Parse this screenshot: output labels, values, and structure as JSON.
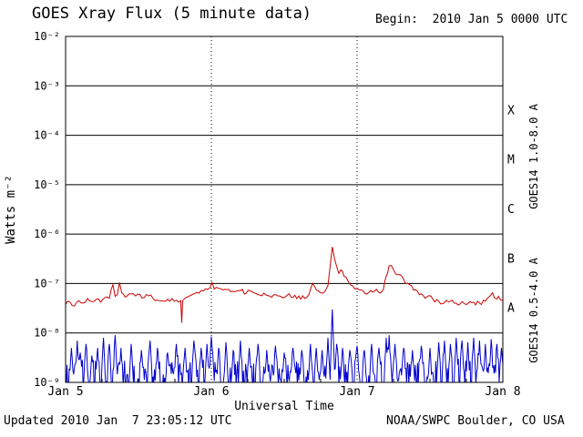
{
  "header": {
    "title": "GOES Xray Flux (5 minute data)",
    "begin_label": "Begin:  2010 Jan 5 0000 UTC"
  },
  "footer": {
    "updated": "Updated 2010 Jan  7 23:05:12 UTC",
    "source": "NOAA/SWPC Boulder, CO USA"
  },
  "chart_data": {
    "type": "line",
    "title": "GOES Xray Flux (5 minute data)",
    "xlabel": "Universal Time",
    "ylabel": "Watts m⁻²",
    "x_axis": {
      "range_days": [
        0,
        3
      ],
      "ticks": [
        {
          "label": "Jan 5",
          "t": 0
        },
        {
          "label": "Jan 6",
          "t": 1
        },
        {
          "label": "Jan 7",
          "t": 2
        },
        {
          "label": "Jan 8",
          "t": 3
        }
      ],
      "minor_tick_hours": 6
    },
    "y_axis": {
      "log_range": [
        -9,
        -2
      ],
      "ticks": [
        {
          "label": "10⁻²",
          "log": -2
        },
        {
          "label": "10⁻³",
          "log": -3
        },
        {
          "label": "10⁻⁴",
          "log": -4
        },
        {
          "label": "10⁻⁵",
          "log": -5
        },
        {
          "label": "10⁻⁶",
          "log": -6
        },
        {
          "label": "10⁻⁷",
          "log": -7
        },
        {
          "label": "10⁻⁸",
          "log": -8
        },
        {
          "label": "10⁻⁹",
          "log": -9
        }
      ]
    },
    "flare_classes": [
      {
        "label": "X",
        "log_center": -3.5
      },
      {
        "label": "M",
        "log_center": -4.5
      },
      {
        "label": "C",
        "log_center": -5.5
      },
      {
        "label": "B",
        "log_center": -6.5
      },
      {
        "label": "A",
        "log_center": -7.5
      }
    ],
    "grid": {
      "horizontal_solid_logs": [
        -3,
        -4,
        -5,
        -6,
        -7,
        -8
      ],
      "vertical_dotted_days": [
        1,
        2
      ]
    },
    "series": [
      {
        "name": "GOES14 1.0-8.0 A",
        "color": "#cc0000",
        "render_jitter_log": 0.05,
        "x": [
          0.0,
          0.03,
          0.06,
          0.09,
          0.12,
          0.15,
          0.18,
          0.21,
          0.24,
          0.27,
          0.3,
          0.325,
          0.34,
          0.355,
          0.37,
          0.385,
          0.42,
          0.45,
          0.48,
          0.51,
          0.54,
          0.57,
          0.6,
          0.63,
          0.66,
          0.7,
          0.73,
          0.76,
          0.79,
          0.797,
          0.803,
          0.81,
          0.84,
          0.87,
          0.9,
          0.93,
          0.96,
          0.99,
          1.005,
          1.02,
          1.05,
          1.08,
          1.12,
          1.16,
          1.2,
          1.24,
          1.28,
          1.32,
          1.36,
          1.4,
          1.44,
          1.48,
          1.52,
          1.56,
          1.6,
          1.64,
          1.67,
          1.695,
          1.72,
          1.75,
          1.78,
          1.8,
          1.815,
          1.83,
          1.845,
          1.86,
          1.875,
          1.89,
          1.91,
          1.94,
          1.97,
          2.0,
          2.04,
          2.08,
          2.12,
          2.16,
          2.18,
          2.2,
          2.22,
          2.25,
          2.28,
          2.32,
          2.36,
          2.4,
          2.44,
          2.48,
          2.52,
          2.56,
          2.6,
          2.64,
          2.68,
          2.72,
          2.76,
          2.8,
          2.84,
          2.88,
          2.91,
          2.93,
          2.95,
          2.97,
          3.0
        ],
        "y": [
          3.8e-08,
          4.2e-08,
          3.5e-08,
          4.5e-08,
          4e-08,
          5e-08,
          4.3e-08,
          4.8e-08,
          4.2e-08,
          5.2e-08,
          5e-08,
          9.5e-08,
          5.5e-08,
          6e-08,
          1.05e-07,
          6.5e-08,
          5.5e-08,
          6.2e-08,
          5.6e-08,
          6e-08,
          5.2e-08,
          5.6e-08,
          5e-08,
          4.6e-08,
          4.4e-08,
          4.8e-08,
          5e-08,
          4.6e-08,
          4.5e-08,
          1.6e-08,
          4.5e-08,
          4.7e-08,
          5.4e-08,
          6e-08,
          6.6e-08,
          7.2e-08,
          7.8e-08,
          8.2e-08,
          1.05e-07,
          7.8e-08,
          8e-08,
          7.4e-08,
          7.6e-08,
          6.8e-08,
          7.2e-08,
          6.4e-08,
          6.8e-08,
          6e-08,
          6.4e-08,
          5.6e-08,
          6e-08,
          5.4e-08,
          5.8e-08,
          5.2e-08,
          5.6e-08,
          5e-08,
          6e-08,
          1e-07,
          7.5e-08,
          6.5e-08,
          7e-08,
          9e-08,
          2.2e-07,
          5.5e-07,
          3.2e-07,
          2.2e-07,
          1.6e-07,
          1.9e-07,
          1.4e-07,
          1.1e-07,
          9e-08,
          8e-08,
          7.2e-08,
          6.6e-08,
          7e-08,
          6.4e-08,
          7.5e-08,
          1.4e-07,
          2.3e-07,
          1.9e-07,
          1.5e-07,
          1.2e-07,
          9.5e-08,
          7.5e-08,
          6.2e-08,
          5.4e-08,
          4.8e-08,
          4.4e-08,
          4.1e-08,
          4.4e-08,
          4e-08,
          4.3e-08,
          3.9e-08,
          4.2e-08,
          4e-08,
          4.4e-08,
          5.5e-08,
          6.5e-08,
          5e-08,
          5.5e-08,
          4.6e-08
        ]
      },
      {
        "name": "GOES14 0.5-4.0 A",
        "color": "#0000cd",
        "noise_floor": 7e-10,
        "noise_ceil": 2.8e-09,
        "spike_t": [
          0.04,
          0.08,
          0.1,
          0.14,
          0.18,
          0.22,
          0.26,
          0.3,
          0.34,
          0.38,
          0.45,
          0.52,
          0.58,
          0.63,
          0.7,
          0.76,
          0.82,
          0.88,
          0.93,
          0.97,
          1.0,
          1.05,
          1.1,
          1.15,
          1.2,
          1.26,
          1.32,
          1.38,
          1.44,
          1.5,
          1.56,
          1.62,
          1.68,
          1.72,
          1.76,
          1.8,
          1.83,
          1.86,
          1.9,
          1.95,
          2.0,
          2.05,
          2.1,
          2.15,
          2.2,
          2.22,
          2.26,
          2.32,
          2.38,
          2.44,
          2.5,
          2.56,
          2.6,
          2.64,
          2.68,
          2.72,
          2.76,
          2.8,
          2.84,
          2.88,
          2.92,
          2.96,
          2.99
        ],
        "spike_v": [
          5e-09,
          7e-09,
          4e-09,
          6e-09,
          3.5e-09,
          5e-09,
          8e-09,
          6e-09,
          9e-09,
          5e-09,
          6e-09,
          4.5e-09,
          7e-09,
          5e-09,
          4e-09,
          6e-09,
          5e-09,
          7e-09,
          5e-09,
          6e-09,
          8.5e-09,
          5e-09,
          6.5e-09,
          4.5e-09,
          7e-09,
          5e-09,
          6e-09,
          4.5e-09,
          5.5e-09,
          4e-09,
          5e-09,
          4.5e-09,
          6e-09,
          5e-09,
          4.5e-09,
          8e-09,
          3e-08,
          6e-09,
          5e-09,
          4.5e-09,
          5.5e-09,
          4.5e-09,
          6e-09,
          5e-09,
          8e-09,
          9e-09,
          6e-09,
          5e-09,
          4.5e-09,
          5.5e-09,
          5e-09,
          6.5e-09,
          7e-09,
          6e-09,
          8e-09,
          7e-09,
          6.5e-09,
          8e-09,
          7e-09,
          6e-09,
          7.5e-09,
          6e-09,
          5e-09
        ]
      }
    ]
  }
}
